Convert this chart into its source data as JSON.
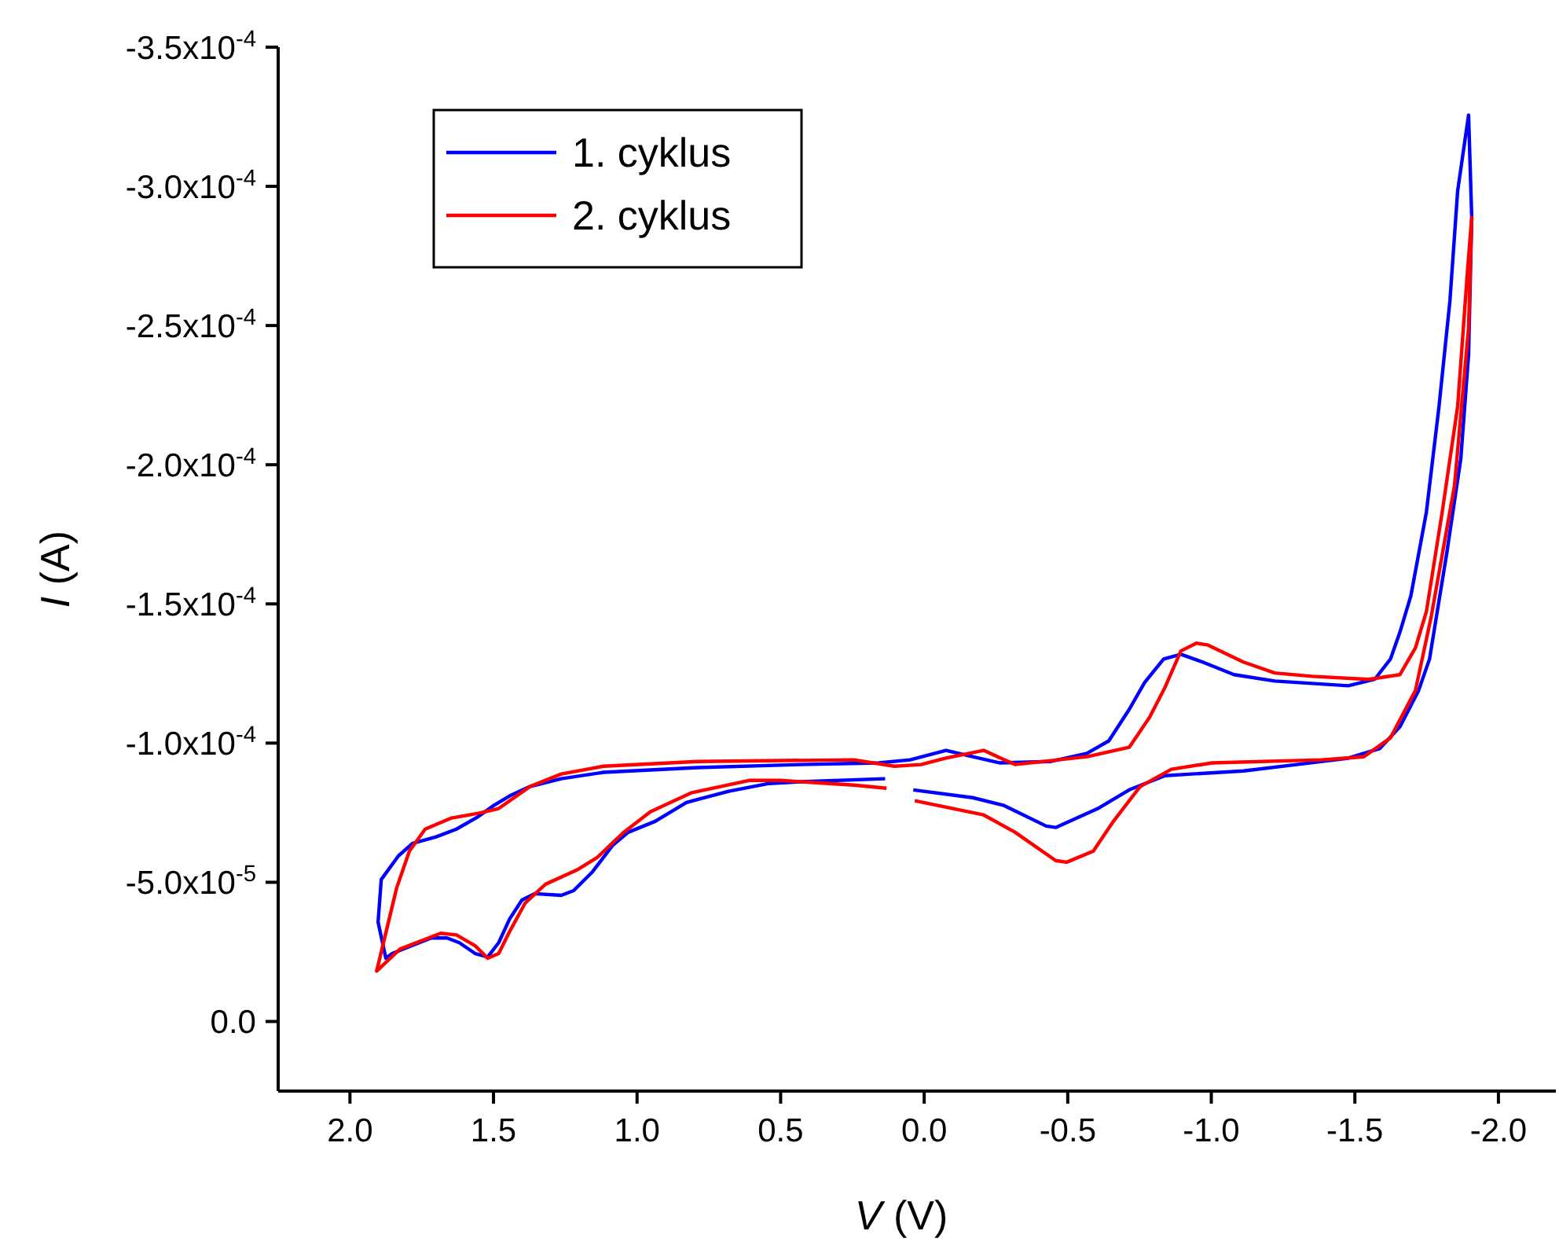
{
  "chart_data": {
    "type": "line",
    "xlabel": "V (V)",
    "ylabel": "I (A)",
    "xlim": [
      2.25,
      -2.2
    ],
    "ylim": [
      2.5e-05,
      -0.00035
    ],
    "xticks": [
      {
        "value": 2,
        "label": "2.0"
      },
      {
        "value": 1.5,
        "label": "1.5"
      },
      {
        "value": 1,
        "label": "1.0"
      },
      {
        "value": 0.5,
        "label": "0.5"
      },
      {
        "value": 0,
        "label": "0.0"
      },
      {
        "value": -0.5,
        "label": "-0.5"
      },
      {
        "value": -1,
        "label": "-1.0"
      },
      {
        "value": -1.5,
        "label": "-1.5"
      },
      {
        "value": -2,
        "label": "-2.0"
      }
    ],
    "yticks": [
      {
        "value": 0,
        "label": "0.0"
      },
      {
        "value": -5e-05,
        "label": "-5.0x10$^{-5}$"
      },
      {
        "value": -0.0001,
        "label": "-1.0x10$^{-4}$"
      },
      {
        "value": -0.00015,
        "label": "-1.5x10$^{-4}$"
      },
      {
        "value": -0.0002,
        "label": "-2.0x10$^{-4}$"
      },
      {
        "value": -0.00025,
        "label": "-2.5x10$^{-4}$"
      },
      {
        "value": -0.0003,
        "label": "-3.0x10$^{-4}$"
      },
      {
        "value": -0.00035,
        "label": "-3.5x10$^{-4}$"
      }
    ],
    "legend": "top left",
    "grid": false,
    "marker": "none",
    "line_style": "solid",
    "series": [
      {
        "name": "1. cyklus",
        "color": "#0000ff",
        "x": [
          0.038,
          -0.169,
          -0.278,
          -0.425,
          -0.458,
          -0.605,
          -0.714,
          -0.839,
          -0.932,
          -1.112,
          -1.297,
          -1.477,
          -1.586,
          -1.657,
          -1.722,
          -1.76,
          -1.82,
          -1.869,
          -1.896,
          -1.907,
          -1.896,
          -1.858,
          -1.831,
          -1.793,
          -1.749,
          -1.695,
          -1.657,
          -1.624,
          -1.569,
          -1.477,
          -1.221,
          -1.079,
          -0.97,
          -0.894,
          -0.834,
          -0.768,
          -0.714,
          -0.643,
          -0.567,
          -0.441,
          -0.262,
          -0.169,
          -0.076,
          0.049,
          0.158,
          0.431,
          0.79,
          1.117,
          1.264,
          1.373,
          1.444,
          1.499,
          1.553,
          1.629,
          1.7,
          1.782,
          1.831,
          1.891,
          1.902,
          1.875,
          1.853,
          1.717,
          1.662,
          1.619,
          1.564,
          1.52,
          1.482,
          1.444,
          1.401,
          1.357,
          1.264,
          1.221,
          1.155,
          1.084,
          1.03,
          0.937,
          0.828,
          0.681,
          0.54,
          0.431,
          0.136
        ],
        "values": [
          -8.32e-05,
          -8.04e-05,
          -7.76e-05,
          -7.02e-05,
          -6.97e-05,
          -7.65e-05,
          -8.32e-05,
          -8.83e-05,
          -8.89e-05,
          -9e-05,
          -9.23e-05,
          -9.46e-05,
          -9.8e-05,
          -0.0001059,
          -0.0001189,
          -0.0001302,
          -0.0001682,
          -0.0002022,
          -0.0002395,
          -0.0002888,
          -0.0003256,
          -0.0002984,
          -0.0002588,
          -0.0002209,
          -0.0001829,
          -0.0001529,
          -0.0001399,
          -0.0001302,
          -0.0001229,
          -0.0001206,
          -0.0001223,
          -0.0001246,
          -0.0001291,
          -0.0001319,
          -0.0001302,
          -0.0001218,
          -0.0001121,
          -0.0001008,
          -9.63e-05,
          -9.34e-05,
          -9.29e-05,
          -9.51e-05,
          -9.74e-05,
          -9.4e-05,
          -9.29e-05,
          -9.23e-05,
          -9.12e-05,
          -8.95e-05,
          -8.72e-05,
          -8.44e-05,
          -8.1e-05,
          -7.76e-05,
          -7.36e-05,
          -6.91e-05,
          -6.63e-05,
          -6.4e-05,
          -5.95e-05,
          -5.1e-05,
          -3.57e-05,
          -2.27e-05,
          -2.44e-05,
          -3e-05,
          -3e-05,
          -2.83e-05,
          -2.44e-05,
          -2.32e-05,
          -2.83e-05,
          -3.68e-05,
          -4.36e-05,
          -4.59e-05,
          -4.53e-05,
          -4.7e-05,
          -5.38e-05,
          -6.34e-05,
          -6.8e-05,
          -7.19e-05,
          -7.87e-05,
          -8.27e-05,
          -8.55e-05,
          -8.61e-05,
          -8.72e-05
        ]
      },
      {
        "name": "2. cyklus",
        "color": "#ff0000",
        "x": [
          0.033,
          -0.207,
          -0.316,
          -0.458,
          -0.496,
          -0.589,
          -0.659,
          -0.752,
          -0.861,
          -1.003,
          -1.384,
          -1.531,
          -1.624,
          -1.711,
          -1.766,
          -1.847,
          -1.896,
          -1.907,
          -1.891,
          -1.858,
          -1.804,
          -1.749,
          -1.711,
          -1.657,
          -1.548,
          -1.351,
          -1.221,
          -1.112,
          -0.986,
          -0.948,
          -0.894,
          -0.839,
          -0.785,
          -0.714,
          -0.567,
          -0.316,
          -0.207,
          -0.076,
          0.011,
          0.104,
          0.245,
          0.79,
          1.117,
          1.264,
          1.373,
          1.482,
          1.553,
          1.646,
          1.738,
          1.793,
          1.837,
          1.907,
          1.826,
          1.684,
          1.629,
          1.564,
          1.52,
          1.482,
          1.444,
          1.39,
          1.319,
          1.21,
          1.139,
          1.046,
          0.954,
          0.812,
          0.61,
          0.501,
          0.245,
          0.131
        ],
        "values": [
          -7.93e-05,
          -7.42e-05,
          -6.8e-05,
          -5.78e-05,
          -5.72e-05,
          -6.12e-05,
          -7.19e-05,
          -8.44e-05,
          -9.06e-05,
          -9.29e-05,
          -9.4e-05,
          -9.51e-05,
          -0.0001019,
          -0.0001189,
          -0.0001455,
          -0.0001925,
          -0.0002492,
          -0.0002888,
          -0.0002679,
          -0.0002209,
          -0.0001829,
          -0.0001472,
          -0.0001342,
          -0.0001246,
          -0.0001229,
          -0.000124,
          -0.0001252,
          -0.0001291,
          -0.0001353,
          -0.0001359,
          -0.0001331,
          -0.0001201,
          -0.0001093,
          -9.85e-05,
          -9.51e-05,
          -9.23e-05,
          -9.74e-05,
          -9.46e-05,
          -9.23e-05,
          -9.17e-05,
          -9.4e-05,
          -9.34e-05,
          -9.17e-05,
          -8.89e-05,
          -8.44e-05,
          -7.65e-05,
          -7.48e-05,
          -7.31e-05,
          -6.91e-05,
          -6.12e-05,
          -4.81e-05,
          -1.81e-05,
          -2.6e-05,
          -3.17e-05,
          -3.11e-05,
          -2.72e-05,
          -2.27e-05,
          -2.44e-05,
          -3.23e-05,
          -4.25e-05,
          -4.93e-05,
          -5.44e-05,
          -5.89e-05,
          -6.8e-05,
          -7.53e-05,
          -8.21e-05,
          -8.66e-05,
          -8.66e-05,
          -8.49e-05,
          -8.38e-05
        ]
      }
    ]
  }
}
